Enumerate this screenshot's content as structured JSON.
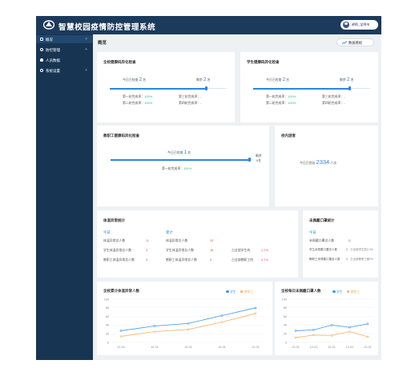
{
  "app": {
    "title": "智慧校园疫情防控管理系统"
  },
  "header": {
    "user_name": "郝帆_宝鸡市"
  },
  "sidebar": {
    "items": [
      {
        "label": "概况",
        "arrow": ">"
      },
      {
        "label": "防控管理",
        "arrow": "+"
      },
      {
        "label": "人员数据",
        "arrow": ""
      },
      {
        "label": "系统设置",
        "arrow": "+"
      }
    ]
  },
  "page": {
    "breadcrumb": "概览",
    "big_screen_label": "数据看板"
  },
  "school_test": {
    "title": "全校健康码异化检查",
    "today_label": "今日已检查",
    "today_value": "2",
    "today_unit": "名",
    "remain_label": "剩余",
    "remain_value": "2",
    "remain_unit": "名",
    "r1_label": "第一轮完成率：",
    "r1_value": "100%",
    "r2_label": "第二轮完成率：",
    "r2_value": "100%",
    "r3_label": "第三轮完成率：",
    "r3_value": "-",
    "r4_label": "第四轮完成率：",
    "r4_value": "-",
    "progress_pct": 82
  },
  "student_test": {
    "title": "学生健康码异化检查",
    "today_label": "今日已检查",
    "today_value": "2",
    "today_unit": "名",
    "remain_label": "剩余",
    "remain_value": "2",
    "remain_unit": "名",
    "r1_label": "第一轮完成率：",
    "r1_value": "100%",
    "r2_label": "第二轮完成率：",
    "r2_value": "100%",
    "r3_label": "第三轮完成率：",
    "r3_value": "-",
    "r4_label": "第四轮完成率：",
    "r4_value": "-",
    "progress_pct": 82
  },
  "staff_test": {
    "title": "教职工健康码异化检查",
    "today_label": "今日已检查",
    "today_value": "1",
    "today_unit": "名",
    "remain_label": "剩余",
    "remain_value": "0名",
    "r1_label": "第一轮完成率：",
    "r1_value": "100%",
    "progress_pct": 97
  },
  "campus": {
    "title": "校内游客",
    "today_label": "今日已到访",
    "today_value": "2334",
    "today_unit": "人次"
  },
  "abnormal": {
    "title": "体温异常统计",
    "today_header": "今日",
    "total_header": "累计",
    "rows": [
      {
        "label": "体温异常总人数",
        "today": "11",
        "total_label": "体温异常总人数",
        "total": "33",
        "share_label": "",
        "share": ""
      },
      {
        "label": "学生体温异常总人数",
        "today": "3",
        "total_label": "学生体温异常总人数",
        "total": "18",
        "share_label": "占全部学生的",
        "share": "2.2%"
      },
      {
        "label": "教职工体温异常总人数",
        "today": "3",
        "total_label": "教职工体温异常总人数",
        "total": "5",
        "share_label": "占全部教职工的",
        "share": "0.7%"
      }
    ]
  },
  "unchecked": {
    "title": "未佩戴口罩统计",
    "today_header": "今日",
    "rows": [
      {
        "label": "未佩戴口罩总人数",
        "value": "12",
        "share_label": "",
        "share": ""
      },
      {
        "label": "学生未佩戴口罩总人数",
        "value": "5",
        "share_label": "占全部学生的",
        "share": "2.3%"
      },
      {
        "label": "教职工未佩戴口罩总人数",
        "value": "5",
        "share_label": "占全部教职工的",
        "share": "0.7%"
      }
    ]
  },
  "colors": {
    "student": "#3a9be8",
    "staff": "#f6b25e",
    "accent": "#2e86de"
  },
  "chart_data": [
    {
      "type": "line",
      "title": "全校累计体温异常人数",
      "x": [
        "12-01",
        "12-01",
        "12-01",
        "12-01",
        "12-01"
      ],
      "ylim": [
        0,
        100
      ],
      "yticks": [
        0,
        20,
        40,
        60,
        80,
        100
      ],
      "grid": true,
      "legend": "top-right",
      "series": [
        {
          "name": "学生",
          "color": "#3a9be8",
          "values": [
            27,
            38,
            44,
            62,
            80
          ]
        },
        {
          "name": "教职工",
          "color": "#f6b25e",
          "values": [
            14,
            25,
            30,
            47,
            67
          ]
        }
      ]
    },
    {
      "type": "line",
      "title": "全校每日未佩戴口罩人数",
      "x": [
        "12-01",
        "12-01",
        "12-01",
        "12-01",
        "12-01"
      ],
      "ylim": [
        0,
        100
      ],
      "yticks": [
        0,
        20,
        40,
        60,
        80,
        100
      ],
      "grid": true,
      "legend": "top-right",
      "series": [
        {
          "name": "学生",
          "color": "#3a9be8",
          "values": [
            27,
            29,
            40,
            35,
            43
          ]
        },
        {
          "name": "教职工",
          "color": "#f6b25e",
          "values": [
            11,
            17,
            16,
            25,
            13
          ]
        }
      ]
    }
  ]
}
